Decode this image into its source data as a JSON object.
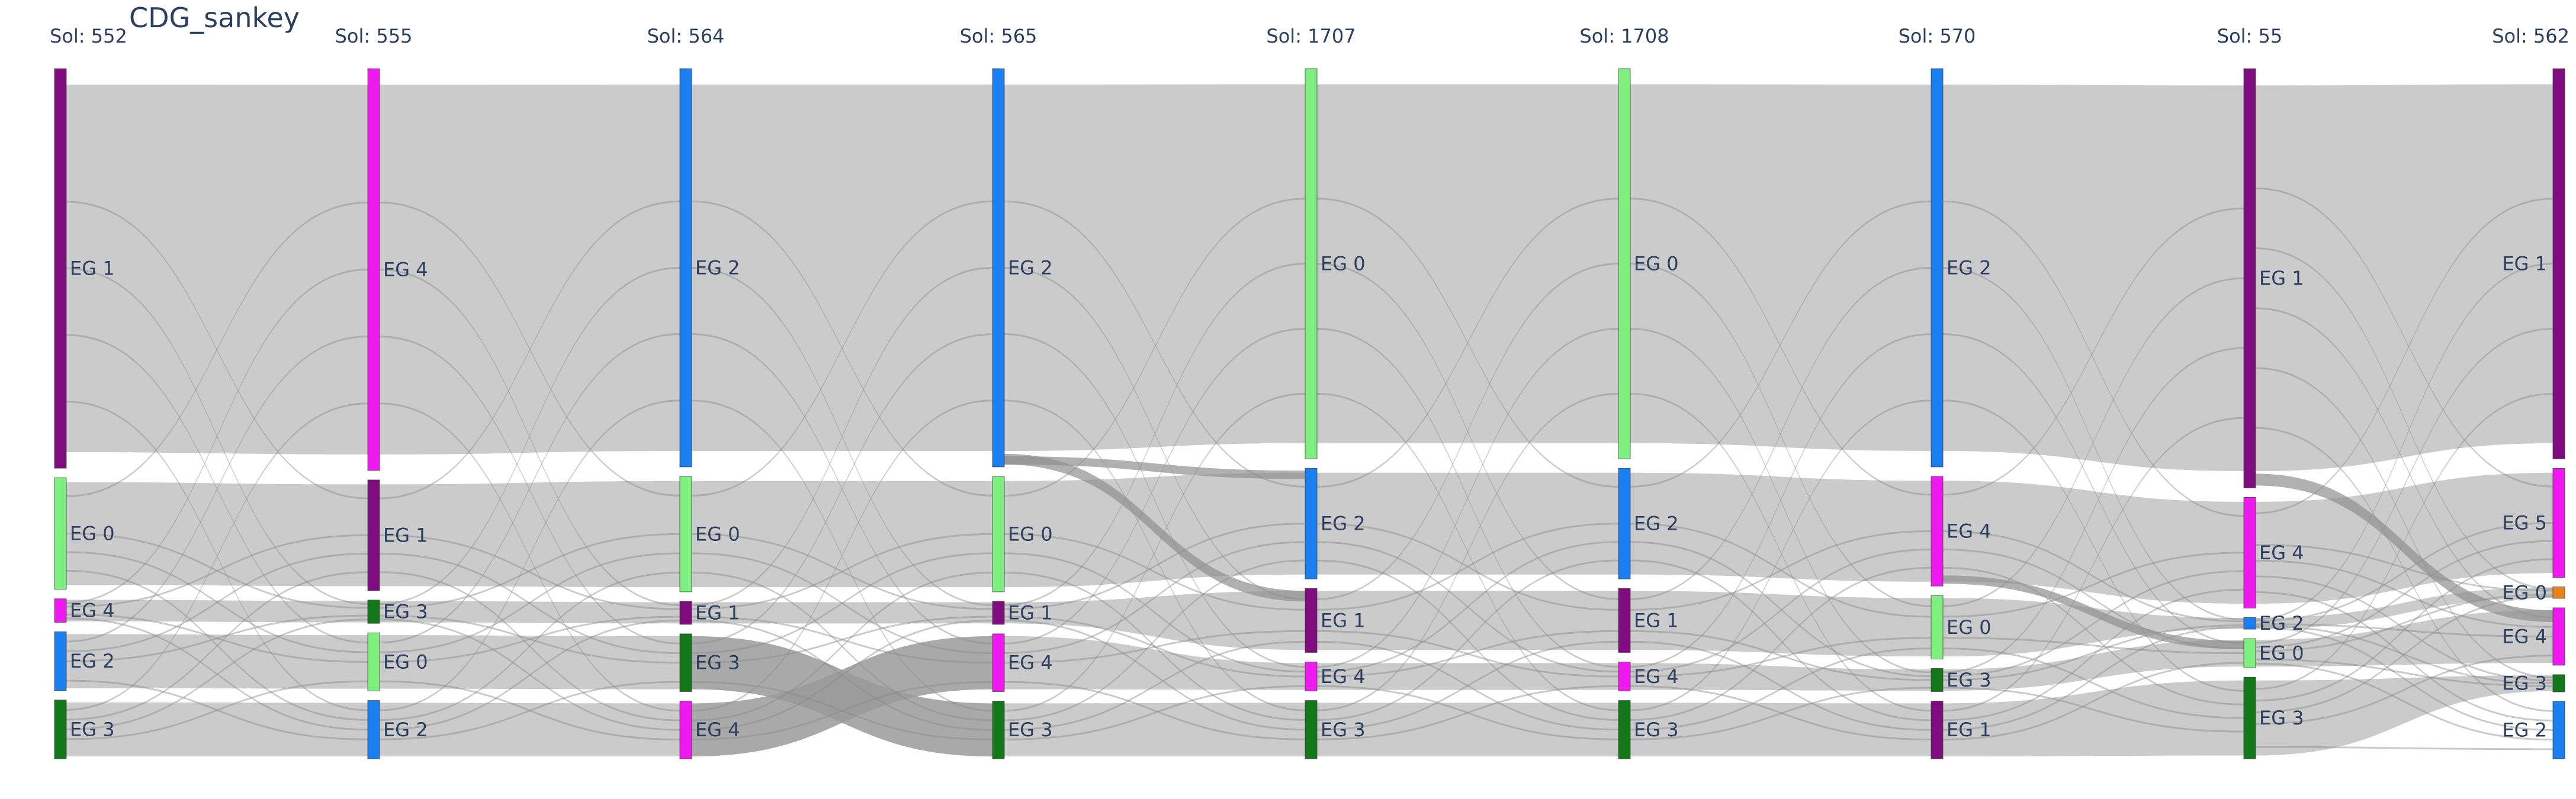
{
  "chart_data": {
    "type": "sankey",
    "title": "CDG_sankey",
    "colors": {
      "EG 0": "#7ff07f",
      "EG 1": "#7f0c7f",
      "EG 2": "#1a7ff0",
      "EG 3": "#12781a",
      "EG 4": "#f01af0",
      "EG 5": "#f01af0",
      "EG 0 (Sol 562)": "#e8801a",
      "link": "#c8c8c8",
      "link-crossing": "#9a9a9a"
    },
    "columns": [
      {
        "header": "Sol: 552",
        "nodes": [
          {
            "label": "EG 1",
            "value": 68
          },
          {
            "label": "EG 0",
            "value": 19
          },
          {
            "label": "EG 4",
            "value": 4
          },
          {
            "label": "EG 2",
            "value": 10
          },
          {
            "label": "EG 3",
            "value": 10
          }
        ]
      },
      {
        "header": "Sol: 555",
        "nodes": [
          {
            "label": "EG 4",
            "value": 69
          },
          {
            "label": "EG 1",
            "value": 19
          },
          {
            "label": "EG 3",
            "value": 4
          },
          {
            "label": "EG 0",
            "value": 10
          },
          {
            "label": "EG 2",
            "value": 10
          }
        ]
      },
      {
        "header": "Sol: 564",
        "nodes": [
          {
            "label": "EG 2",
            "value": 69
          },
          {
            "label": "EG 0",
            "value": 20
          },
          {
            "label": "EG 1",
            "value": 4
          },
          {
            "label": "EG 3",
            "value": 10
          },
          {
            "label": "EG 4",
            "value": 10
          }
        ]
      },
      {
        "header": "Sol: 565",
        "nodes": [
          {
            "label": "EG 2",
            "value": 69
          },
          {
            "label": "EG 0",
            "value": 20
          },
          {
            "label": "EG 1",
            "value": 4
          },
          {
            "label": "EG 4",
            "value": 10
          },
          {
            "label": "EG 3",
            "value": 10
          }
        ]
      },
      {
        "header": "Sol: 1707",
        "nodes": [
          {
            "label": "EG 0",
            "value": 67
          },
          {
            "label": "EG 2",
            "value": 19
          },
          {
            "label": "EG 1",
            "value": 11
          },
          {
            "label": "EG 4",
            "value": 5
          },
          {
            "label": "EG 3",
            "value": 10
          }
        ]
      },
      {
        "header": "Sol: 1708",
        "nodes": [
          {
            "label": "EG 0",
            "value": 67
          },
          {
            "label": "EG 2",
            "value": 19
          },
          {
            "label": "EG 1",
            "value": 11
          },
          {
            "label": "EG 4",
            "value": 5
          },
          {
            "label": "EG 3",
            "value": 10
          }
        ]
      },
      {
        "header": "Sol: 570",
        "nodes": [
          {
            "label": "EG 2",
            "value": 69
          },
          {
            "label": "EG 4",
            "value": 19
          },
          {
            "label": "EG 0",
            "value": 11
          },
          {
            "label": "EG 3",
            "value": 4
          },
          {
            "label": "EG 1",
            "value": 10
          }
        ]
      },
      {
        "header": "Sol: 55",
        "nodes": [
          {
            "label": "EG 1",
            "value": 72
          },
          {
            "label": "EG 4",
            "value": 19
          },
          {
            "label": "EG 2",
            "value": 2
          },
          {
            "label": "EG 0",
            "value": 5
          },
          {
            "label": "EG 3",
            "value": 14
          }
        ]
      },
      {
        "header": "Sol: 562",
        "nodes": [
          {
            "label": "EG 1",
            "value": 68
          },
          {
            "label": "EG 5",
            "value": 19
          },
          {
            "label": "EG 0",
            "value": 2
          },
          {
            "label": "EG 4",
            "value": 10
          },
          {
            "label": "EG 3",
            "value": 3
          },
          {
            "label": "EG 2",
            "value": 10
          }
        ]
      }
    ]
  }
}
